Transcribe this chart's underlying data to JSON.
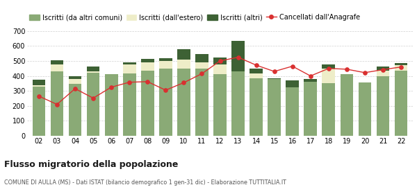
{
  "years": [
    "02",
    "03",
    "04",
    "05",
    "06",
    "07",
    "08",
    "09",
    "10",
    "11",
    "12",
    "13",
    "14",
    "15",
    "16",
    "17",
    "18",
    "19",
    "20",
    "21",
    "22"
  ],
  "iscritti_comuni": [
    328,
    430,
    348,
    420,
    410,
    415,
    435,
    448,
    450,
    450,
    410,
    430,
    383,
    378,
    322,
    362,
    352,
    410,
    358,
    400,
    435
  ],
  "iscritti_estero": [
    12,
    48,
    30,
    12,
    0,
    60,
    55,
    50,
    60,
    40,
    65,
    0,
    35,
    0,
    0,
    0,
    95,
    0,
    0,
    35,
    35
  ],
  "iscritti_altri": [
    35,
    25,
    22,
    30,
    0,
    15,
    25,
    20,
    70,
    55,
    50,
    205,
    30,
    8,
    48,
    18,
    28,
    0,
    0,
    28,
    15
  ],
  "cancellati": [
    265,
    210,
    315,
    252,
    325,
    358,
    362,
    305,
    355,
    415,
    500,
    525,
    472,
    430,
    465,
    400,
    450,
    445,
    422,
    442,
    460
  ],
  "color_comuni": "#8aaa76",
  "color_estero": "#eeedc8",
  "color_altri": "#3d6134",
  "color_cancellati": "#d93030",
  "ylim": [
    0,
    700
  ],
  "yticks": [
    0,
    100,
    200,
    300,
    400,
    500,
    600,
    700
  ],
  "title": "Flusso migratorio della popolazione",
  "subtitle": "COMUNE DI AULLA (MS) - Dati ISTAT (bilancio demografico 1 gen-31 dic) - Elaborazione TUTTITALIA.IT",
  "legend_labels": [
    "Iscritti (da altri comuni)",
    "Iscritti (dall'estero)",
    "Iscritti (altri)",
    "Cancellati dall'Anagrafe"
  ],
  "bg_color": "#ffffff",
  "grid_color": "#d0d0d0"
}
